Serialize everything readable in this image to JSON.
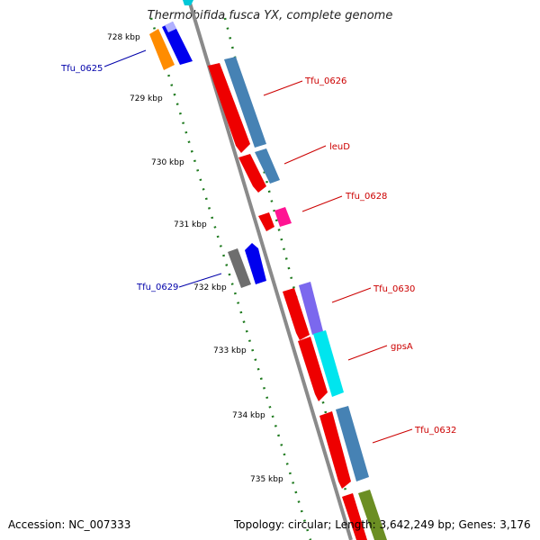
{
  "title": "Thermobifida fusca YX, complete genome",
  "accession": "Accession: NC_007333",
  "summary": "Topology: circular; Length: 3,642,249 bp; Genes: 3,176",
  "colors": {
    "backbone": "#8c8c8c",
    "tick": "#1e7a1e",
    "label_forward": "#cc0000",
    "label_reverse": "#0000aa"
  },
  "kbp_labels": [
    "728 kbp",
    "729 kbp",
    "730 kbp",
    "731 kbp",
    "732 kbp",
    "733 kbp",
    "734 kbp",
    "735 kbp"
  ],
  "gene_labels": [
    {
      "text": "Tfu_0625",
      "strand": "reverse"
    },
    {
      "text": "Tfu_0626",
      "strand": "forward"
    },
    {
      "text": "leuD",
      "strand": "forward"
    },
    {
      "text": "Tfu_0628",
      "strand": "forward"
    },
    {
      "text": "Tfu_0629",
      "strand": "reverse"
    },
    {
      "text": "Tfu_0630",
      "strand": "forward"
    },
    {
      "text": "gpsA",
      "strand": "forward"
    },
    {
      "text": "Tfu_0632",
      "strand": "forward"
    }
  ]
}
